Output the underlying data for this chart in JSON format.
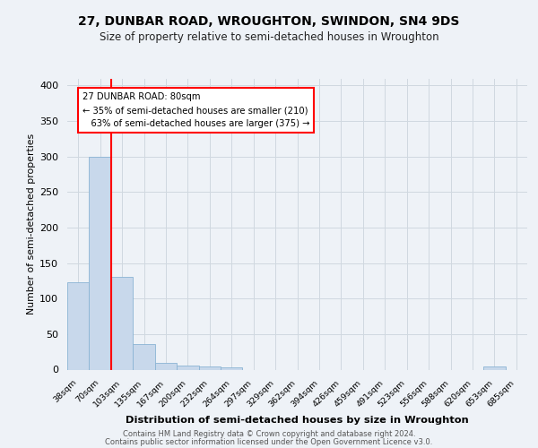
{
  "title_line1": "27, DUNBAR ROAD, WROUGHTON, SWINDON, SN4 9DS",
  "title_line2": "Size of property relative to semi-detached houses in Wroughton",
  "xlabel": "Distribution of semi-detached houses by size in Wroughton",
  "ylabel": "Number of semi-detached properties",
  "categories": [
    "38sqm",
    "70sqm",
    "103sqm",
    "135sqm",
    "167sqm",
    "200sqm",
    "232sqm",
    "264sqm",
    "297sqm",
    "329sqm",
    "362sqm",
    "394sqm",
    "426sqm",
    "459sqm",
    "491sqm",
    "523sqm",
    "556sqm",
    "588sqm",
    "620sqm",
    "653sqm",
    "685sqm"
  ],
  "values": [
    123,
    300,
    130,
    36,
    9,
    6,
    4,
    3,
    0,
    0,
    0,
    0,
    0,
    0,
    0,
    0,
    0,
    0,
    0,
    4,
    0
  ],
  "bar_color": "#c8d8eb",
  "bar_edge_color": "#8ab4d4",
  "red_line_x": 1.5,
  "annotation_line1": "27 DUNBAR ROAD: 80sqm",
  "annotation_line2": "← 35% of semi-detached houses are smaller (210)",
  "annotation_line3": "   63% of semi-detached houses are larger (375) →",
  "ylim": [
    0,
    410
  ],
  "yticks": [
    0,
    50,
    100,
    150,
    200,
    250,
    300,
    350,
    400
  ],
  "footer_line1": "Contains HM Land Registry data © Crown copyright and database right 2024.",
  "footer_line2": "Contains public sector information licensed under the Open Government Licence v3.0.",
  "bg_color": "#eef2f7",
  "plot_bg_color": "#eef2f7",
  "grid_color": "#d0d8e0"
}
